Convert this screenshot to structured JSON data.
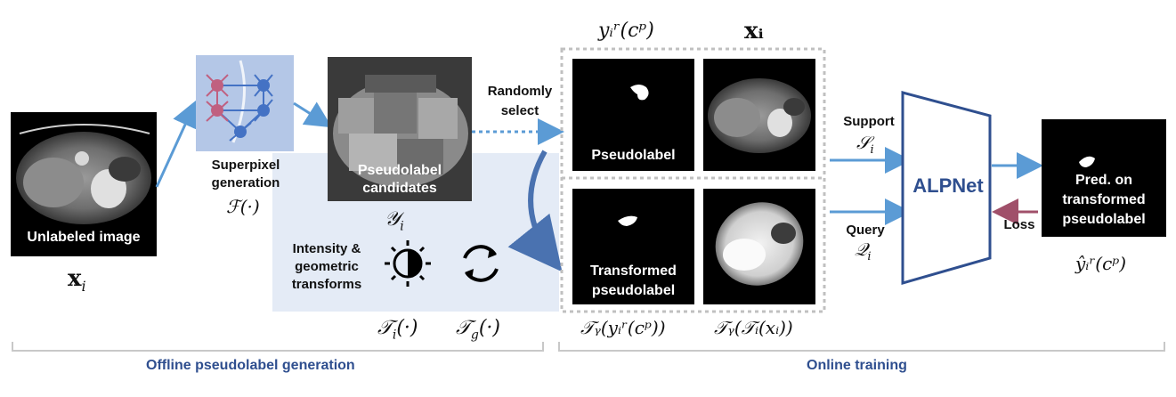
{
  "unlabeled": {
    "label": "Unlabeled image",
    "math": "x",
    "sub": "i"
  },
  "superpixel": {
    "label_line1": "Superpixel",
    "label_line2": "generation",
    "math": "ℱ(·)"
  },
  "candidates": {
    "label_line1": "Pseudolabel",
    "label_line2": "candidates",
    "math": "𝒴",
    "sub": "i"
  },
  "select": {
    "line1": "Randomly",
    "line2": "select"
  },
  "transforms": {
    "line1": "Intensity &",
    "line2": "geometric",
    "line3": "transforms",
    "ti_math": "𝒯",
    "ti_sub": "i",
    "ti_arg": "(·)",
    "tg_math": "𝒯",
    "tg_sub": "g",
    "tg_arg": "(·)",
    "brightness_icon": "brightness-contrast-icon",
    "rotate_icon": "rotate-icon"
  },
  "tiles": {
    "pseudolabel": "Pseudolabel",
    "transformed_line1": "Transformed",
    "transformed_line2": "pseudolabel",
    "top_left_math": "yᵢʳ(cᵖ)",
    "top_right_math": "xᵢ",
    "bottom_left_math": "𝒯ᵧ(yᵢʳ(cᵖ))",
    "bottom_right_math": "𝒯ᵧ(𝒯ᵢ(xᵢ))"
  },
  "support": {
    "label": "Support",
    "math": "𝒮",
    "sub": "i"
  },
  "query": {
    "label": "Query",
    "math": "𝒬",
    "sub": "i"
  },
  "network": {
    "label": "ALPNet"
  },
  "prediction": {
    "line1": "Pred. on",
    "line2": "transformed",
    "line3": "pseudolabel",
    "math": "ŷᵢʳ(cᵖ)"
  },
  "loss": {
    "label": "Loss"
  },
  "sections": {
    "offline": "Offline pseudolabel generation",
    "online": "Online training"
  },
  "colors": {
    "arrow_blue": "#5b9bd5",
    "net_blue": "#2f4f8f",
    "loss_red": "#a0506a",
    "panel_bg": "#e4ebf6"
  }
}
